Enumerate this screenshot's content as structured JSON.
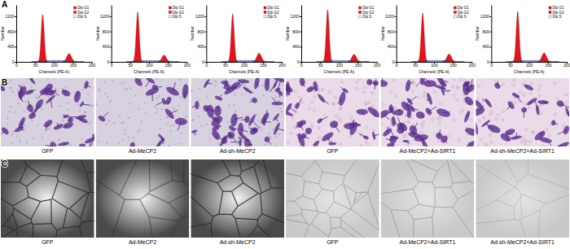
{
  "panel_labels": [
    "A",
    "B",
    "C"
  ],
  "chart_data": [
    {
      "type": "area",
      "x_label": "Channels (PE-A)",
      "y_label": "Number",
      "legend": "top-right",
      "x": [
        40,
        55,
        60,
        64,
        67,
        70,
        73,
        76,
        80,
        85,
        100,
        120,
        130,
        135,
        140,
        145,
        150,
        160,
        180
      ],
      "xlim": [
        0,
        200
      ],
      "xticks": [
        0,
        50,
        100,
        150,
        200
      ],
      "ylim": [
        0,
        1500
      ],
      "yticks": [
        0,
        400,
        800,
        1200
      ],
      "series": [
        {
          "name": "Dip G1",
          "color": "#e3141c",
          "values": [
            0,
            0,
            50,
            400,
            940,
            1250,
            940,
            400,
            50,
            0,
            0,
            0,
            0,
            0,
            0,
            0,
            0,
            0,
            0
          ]
        },
        {
          "name": "Dip G2",
          "color": "#e3141c",
          "values": [
            0,
            0,
            0,
            0,
            0,
            0,
            0,
            0,
            0,
            0,
            0,
            0,
            55,
            155,
            220,
            155,
            55,
            0,
            0
          ]
        },
        {
          "name": "Dip S",
          "color": "#3b4cc0",
          "type": "line",
          "values": [
            0,
            0,
            0,
            0,
            0,
            0,
            0,
            20,
            30,
            35,
            35,
            35,
            30,
            20,
            0,
            0,
            0,
            0,
            0
          ]
        }
      ]
    },
    {
      "type": "area",
      "x_label": "Channels (PE-A)",
      "y_label": "Number",
      "legend": "top-right",
      "x": [
        40,
        55,
        60,
        64,
        67,
        70,
        73,
        76,
        80,
        85,
        100,
        120,
        130,
        135,
        140,
        145,
        150,
        160,
        180
      ],
      "xlim": [
        0,
        200
      ],
      "xticks": [
        0,
        50,
        100,
        150,
        200
      ],
      "ylim": [
        0,
        1500
      ],
      "yticks": [
        0,
        400,
        800,
        1200
      ],
      "series": [
        {
          "name": "Dip G1",
          "color": "#e3141c",
          "values": [
            0,
            0,
            53,
            420,
            990,
            1320,
            990,
            420,
            53,
            0,
            0,
            0,
            0,
            0,
            0,
            0,
            0,
            0,
            0
          ]
        },
        {
          "name": "Dip G2",
          "color": "#e3141c",
          "values": [
            0,
            0,
            0,
            0,
            0,
            0,
            0,
            0,
            0,
            0,
            0,
            0,
            45,
            125,
            180,
            125,
            45,
            0,
            0
          ]
        },
        {
          "name": "Dip S",
          "color": "#3b4cc0",
          "type": "line",
          "values": [
            0,
            0,
            0,
            0,
            0,
            0,
            0,
            15,
            25,
            30,
            30,
            30,
            25,
            15,
            0,
            0,
            0,
            0,
            0
          ]
        }
      ]
    },
    {
      "type": "area",
      "x_label": "Channels (PE-A)",
      "y_label": "Number",
      "legend": "top-right",
      "x": [
        40,
        55,
        60,
        64,
        67,
        70,
        73,
        76,
        80,
        85,
        100,
        120,
        130,
        135,
        140,
        145,
        150,
        160,
        180
      ],
      "xlim": [
        0,
        200
      ],
      "xticks": [
        0,
        50,
        100,
        150,
        200
      ],
      "ylim": [
        0,
        1500
      ],
      "yticks": [
        0,
        400,
        800,
        1200
      ],
      "series": [
        {
          "name": "Dip G1",
          "color": "#e3141c",
          "values": [
            0,
            0,
            50,
            410,
            950,
            1270,
            950,
            410,
            50,
            0,
            0,
            0,
            0,
            0,
            0,
            0,
            0,
            0,
            0
          ]
        },
        {
          "name": "Dip G2",
          "color": "#e3141c",
          "values": [
            0,
            0,
            0,
            0,
            0,
            0,
            0,
            0,
            0,
            0,
            0,
            0,
            58,
            160,
            230,
            160,
            58,
            0,
            0
          ]
        },
        {
          "name": "Dip S",
          "color": "#3b4cc0",
          "type": "line",
          "values": [
            0,
            0,
            0,
            0,
            0,
            0,
            0,
            20,
            30,
            35,
            35,
            35,
            30,
            20,
            0,
            0,
            0,
            0,
            0
          ]
        }
      ]
    },
    {
      "type": "area",
      "x_label": "Channels (PE-A)",
      "y_label": "Number",
      "legend": "top-right",
      "x": [
        40,
        55,
        60,
        64,
        67,
        70,
        73,
        76,
        80,
        85,
        100,
        120,
        130,
        135,
        140,
        145,
        150,
        160,
        180
      ],
      "xlim": [
        0,
        200
      ],
      "xticks": [
        0,
        50,
        100,
        150,
        200
      ],
      "ylim": [
        0,
        1500
      ],
      "yticks": [
        0,
        400,
        800,
        1200
      ],
      "series": [
        {
          "name": "Dip G1",
          "color": "#e3141c",
          "values": [
            0,
            0,
            55,
            440,
            1030,
            1380,
            1030,
            440,
            55,
            0,
            0,
            0,
            0,
            0,
            0,
            0,
            0,
            0,
            0
          ]
        },
        {
          "name": "Dip G2",
          "color": "#e3141c",
          "values": [
            0,
            0,
            0,
            0,
            0,
            0,
            0,
            0,
            0,
            0,
            0,
            0,
            50,
            140,
            200,
            140,
            50,
            0,
            0
          ]
        },
        {
          "name": "Dip S",
          "color": "#3b4cc0",
          "type": "line",
          "values": [
            0,
            0,
            0,
            0,
            0,
            0,
            0,
            20,
            30,
            35,
            35,
            35,
            30,
            20,
            0,
            0,
            0,
            0,
            0
          ]
        }
      ]
    },
    {
      "type": "area",
      "x_label": "Channels (PE-A)",
      "y_label": "Number",
      "legend": "top-right",
      "x": [
        40,
        55,
        60,
        64,
        67,
        70,
        73,
        76,
        80,
        85,
        100,
        120,
        130,
        135,
        140,
        145,
        150,
        160,
        180
      ],
      "xlim": [
        0,
        200
      ],
      "xticks": [
        0,
        50,
        100,
        150,
        200
      ],
      "ylim": [
        0,
        1500
      ],
      "yticks": [
        0,
        400,
        800,
        1200
      ],
      "series": [
        {
          "name": "Dip G1",
          "color": "#e3141c",
          "values": [
            0,
            0,
            52,
            410,
            970,
            1290,
            970,
            410,
            52,
            0,
            0,
            0,
            0,
            0,
            0,
            0,
            0,
            0,
            0
          ]
        },
        {
          "name": "Dip G2",
          "color": "#e3141c",
          "values": [
            0,
            0,
            0,
            0,
            0,
            0,
            0,
            0,
            0,
            0,
            0,
            0,
            52,
            147,
            210,
            147,
            52,
            0,
            0
          ]
        },
        {
          "name": "Dip S",
          "color": "#3b4cc0",
          "type": "line",
          "values": [
            0,
            0,
            0,
            0,
            0,
            0,
            0,
            20,
            30,
            35,
            35,
            35,
            30,
            20,
            0,
            0,
            0,
            0,
            0
          ]
        }
      ]
    },
    {
      "type": "area",
      "x_label": "Channels (PE-A)",
      "y_label": "Number",
      "legend": "top-right",
      "x": [
        40,
        55,
        60,
        64,
        67,
        70,
        73,
        76,
        80,
        85,
        100,
        120,
        130,
        135,
        140,
        145,
        150,
        160,
        180
      ],
      "xlim": [
        0,
        200
      ],
      "xticks": [
        0,
        50,
        100,
        150,
        200
      ],
      "ylim": [
        0,
        1500
      ],
      "yticks": [
        0,
        400,
        800,
        1200
      ],
      "series": [
        {
          "name": "Dip G1",
          "color": "#e3141c",
          "values": [
            0,
            0,
            53,
            425,
            1000,
            1330,
            1000,
            425,
            53,
            0,
            0,
            0,
            0,
            0,
            0,
            0,
            0,
            0,
            0
          ]
        },
        {
          "name": "Dip G2",
          "color": "#e3141c",
          "values": [
            0,
            0,
            0,
            0,
            0,
            0,
            0,
            0,
            0,
            0,
            0,
            0,
            60,
            168,
            240,
            168,
            60,
            0,
            0
          ]
        },
        {
          "name": "Dip S",
          "color": "#3b4cc0",
          "type": "line",
          "values": [
            0,
            0,
            0,
            0,
            0,
            0,
            0,
            20,
            30,
            35,
            35,
            35,
            30,
            20,
            0,
            0,
            0,
            0,
            0
          ]
        }
      ]
    }
  ],
  "transwell_labels": [
    "GFP",
    "Ad-MeCP2",
    "Ad-sh-MeCP2",
    "GFP",
    "Ad-MeCP2+Ad-SIRT1",
    "Ad-sh-MeCP2+Ad-SIRT1"
  ],
  "tube_labels": [
    "GFP",
    "Ad-MeCP2",
    "Ad-sh-MeCP2",
    "GFP",
    "Ad-MeCP2+Ad-SIRT1",
    "Ad-sh-MeCP2+Ad-SIRT1"
  ]
}
